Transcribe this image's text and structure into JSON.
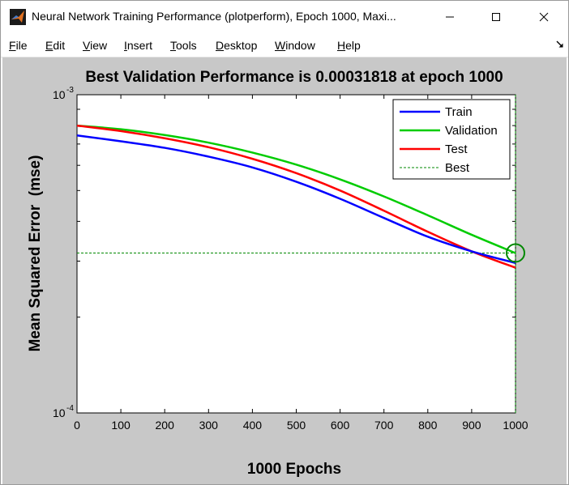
{
  "window": {
    "title": "Neural Network Training Performance (plotperform), Epoch 1000, Maxi..."
  },
  "menu": {
    "items": [
      "File",
      "Edit",
      "View",
      "Insert",
      "Tools",
      "Desktop",
      "Window",
      "Help"
    ]
  },
  "colors": {
    "train": "#0000ff",
    "validation": "#00cc00",
    "test": "#ff0000",
    "best": "#008800",
    "figure_bg": "#c8c8c8"
  },
  "chart_data": {
    "type": "line",
    "title": "Best Validation Performance is 0.00031818 at epoch 1000",
    "xlabel": "1000 Epochs",
    "ylabel": "Mean Squared Error  (mse)",
    "xlim": [
      0,
      1000
    ],
    "ylim": [
      0.0001,
      0.001
    ],
    "yscale": "log",
    "xticks": [
      0,
      100,
      200,
      300,
      400,
      500,
      600,
      700,
      800,
      900,
      1000
    ],
    "xtick_labels": [
      "0",
      "100",
      "200",
      "300",
      "400",
      "500",
      "600",
      "700",
      "800",
      "900",
      "1000"
    ],
    "ytick_labels": [
      {
        "base": "10",
        "exp": "-3",
        "value": 0.001
      },
      {
        "base": "10",
        "exp": "-4",
        "value": 0.0001
      }
    ],
    "legend_position": "top-right",
    "legend": [
      "Train",
      "Validation",
      "Test",
      "Best"
    ],
    "series": [
      {
        "name": "Train",
        "x": [
          0,
          100,
          200,
          300,
          400,
          500,
          600,
          700,
          800,
          900,
          1000
        ],
        "values": [
          0.000745,
          0.000714,
          0.000681,
          0.000639,
          0.000591,
          0.000533,
          0.000471,
          0.00041,
          0.000358,
          0.000322,
          0.000296
        ]
      },
      {
        "name": "Validation",
        "x": [
          0,
          100,
          200,
          300,
          400,
          500,
          600,
          700,
          800,
          900,
          1000
        ],
        "values": [
          0.0008,
          0.000779,
          0.000747,
          0.000707,
          0.000658,
          0.000603,
          0.000542,
          0.000479,
          0.000418,
          0.000363,
          0.000318
        ]
      },
      {
        "name": "Test",
        "x": [
          0,
          100,
          200,
          300,
          400,
          500,
          600,
          700,
          800,
          900,
          1000
        ],
        "values": [
          0.0008,
          0.000769,
          0.00073,
          0.000684,
          0.000629,
          0.000567,
          0.0005,
          0.000432,
          0.000371,
          0.000322,
          0.000286
        ]
      }
    ],
    "best": {
      "epoch": 1000,
      "value": 0.00031818
    }
  }
}
